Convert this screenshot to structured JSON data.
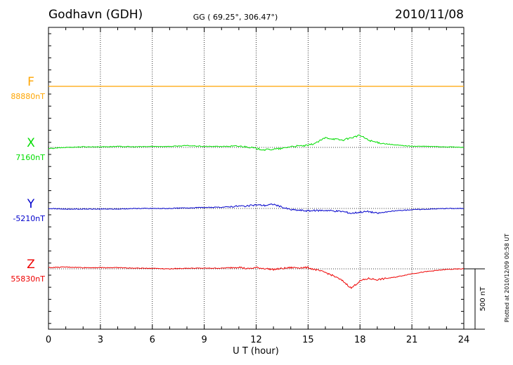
{
  "header": {
    "station": "Godhavn (GDH)",
    "coords": "GG ( 69.25°, 306.47°)",
    "date": "2010/11/08"
  },
  "footer": {
    "plotted": "Plotted at 2010/12/09 00:58 UT"
  },
  "chart_data": {
    "type": "line",
    "xlabel": "U T (hour)",
    "xlim": [
      0,
      24
    ],
    "x_ticks": [
      "0",
      "3",
      "6",
      "9",
      "12",
      "15",
      "18",
      "21",
      "24"
    ],
    "grid": "vertical dotted lines every 3 hours",
    "scale_bar": {
      "label": "500 nT",
      "value_nT": 500
    },
    "series": [
      {
        "name": "F",
        "baseline_label": "88880nT",
        "baseline_nT": 88880,
        "color": "#FFA500",
        "points": [
          [
            0,
            0
          ],
          [
            24,
            0
          ]
        ]
      },
      {
        "name": "X",
        "baseline_label": "7160nT",
        "baseline_nT": 7160,
        "color": "#00DD00",
        "points": [
          [
            0,
            -10
          ],
          [
            1,
            0
          ],
          [
            2,
            5
          ],
          [
            3,
            5
          ],
          [
            4,
            8
          ],
          [
            5,
            5
          ],
          [
            6,
            8
          ],
          [
            7,
            8
          ],
          [
            8,
            15
          ],
          [
            9,
            8
          ],
          [
            10,
            8
          ],
          [
            11,
            10
          ],
          [
            11.5,
            5
          ],
          [
            12,
            -10
          ],
          [
            12.5,
            -20
          ],
          [
            13,
            -15
          ],
          [
            13.5,
            -10
          ],
          [
            14,
            8
          ],
          [
            15,
            15
          ],
          [
            15.5,
            40
          ],
          [
            16,
            80
          ],
          [
            16.5,
            70
          ],
          [
            17,
            60
          ],
          [
            17.5,
            80
          ],
          [
            18,
            100
          ],
          [
            18.5,
            60
          ],
          [
            19,
            40
          ],
          [
            20,
            20
          ],
          [
            21,
            10
          ],
          [
            22,
            8
          ],
          [
            23,
            5
          ],
          [
            24,
            0
          ]
        ]
      },
      {
        "name": "Y",
        "baseline_label": "-5210nT",
        "baseline_nT": -5210,
        "color": "#0000CC",
        "points": [
          [
            0,
            0
          ],
          [
            1,
            -5
          ],
          [
            2,
            -5
          ],
          [
            3,
            -5
          ],
          [
            4,
            -5
          ],
          [
            5,
            0
          ],
          [
            6,
            0
          ],
          [
            7,
            0
          ],
          [
            8,
            5
          ],
          [
            9,
            8
          ],
          [
            10,
            10
          ],
          [
            11,
            20
          ],
          [
            11.5,
            20
          ],
          [
            12,
            30
          ],
          [
            12.5,
            25
          ],
          [
            13,
            35
          ],
          [
            13.5,
            10
          ],
          [
            14,
            -10
          ],
          [
            15,
            -20
          ],
          [
            16,
            -15
          ],
          [
            17,
            -25
          ],
          [
            17.5,
            -40
          ],
          [
            18,
            -30
          ],
          [
            18.5,
            -25
          ],
          [
            19,
            -40
          ],
          [
            20,
            -20
          ],
          [
            21,
            -10
          ],
          [
            22,
            -5
          ],
          [
            23,
            0
          ],
          [
            24,
            0
          ]
        ]
      },
      {
        "name": "Z",
        "baseline_label": "55830nT",
        "baseline_nT": 55830,
        "color": "#EE0000",
        "points": [
          [
            0,
            10
          ],
          [
            1,
            15
          ],
          [
            2,
            10
          ],
          [
            3,
            10
          ],
          [
            4,
            10
          ],
          [
            5,
            5
          ],
          [
            6,
            5
          ],
          [
            7,
            0
          ],
          [
            8,
            5
          ],
          [
            9,
            5
          ],
          [
            10,
            5
          ],
          [
            11,
            15
          ],
          [
            11.5,
            0
          ],
          [
            12,
            10
          ],
          [
            13,
            -5
          ],
          [
            14,
            10
          ],
          [
            15,
            10
          ],
          [
            16,
            -30
          ],
          [
            16.5,
            -60
          ],
          [
            17,
            -100
          ],
          [
            17.5,
            -160
          ],
          [
            18,
            -100
          ],
          [
            18.5,
            -80
          ],
          [
            19,
            -90
          ],
          [
            20,
            -70
          ],
          [
            21,
            -40
          ],
          [
            22,
            -20
          ],
          [
            23,
            -5
          ],
          [
            24,
            0
          ]
        ]
      }
    ]
  }
}
